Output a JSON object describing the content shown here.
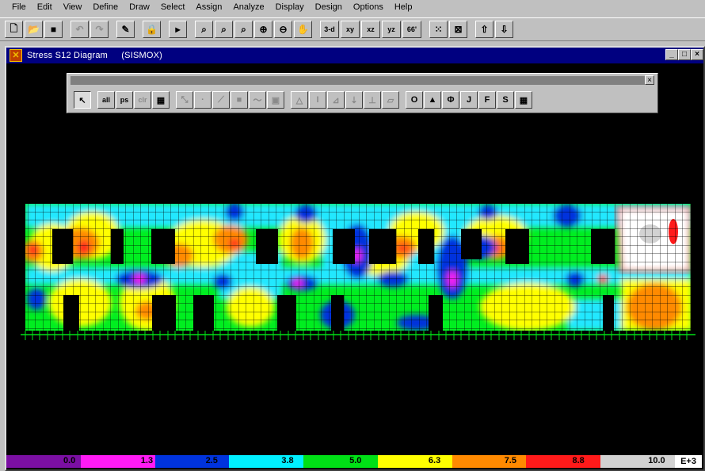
{
  "menu": [
    "File",
    "Edit",
    "View",
    "Define",
    "Draw",
    "Select",
    "Assign",
    "Analyze",
    "Display",
    "Design",
    "Options",
    "Help"
  ],
  "toolbar": {
    "view_3d": "3-d",
    "view_xy": "xy",
    "view_xz": "xz",
    "view_yz": "yz",
    "view_persp": "66'"
  },
  "window": {
    "title": "Stress S12 Diagram",
    "subtitle": "(SISMOX)",
    "minimize": "_",
    "restore": "□",
    "close": "×"
  },
  "palette": {
    "close": "×",
    "all": "all",
    "ps": "ps",
    "clr": "clr",
    "letters": [
      "O",
      "▲",
      "Φ",
      "J",
      "F",
      "S",
      "▦"
    ]
  },
  "legend": {
    "colors": [
      "#7b0fa3",
      "#ff1bf5",
      "#0033dd",
      "#00f0ff",
      "#00e016",
      "#ffff00",
      "#ff8a00",
      "#ff1a1a",
      "#d2d2d2"
    ],
    "labels": [
      "0.0",
      "1.3",
      "2.5",
      "3.8",
      "5.0",
      "6.3",
      "7.5",
      "8.8",
      "10.0"
    ],
    "exponent": "E+3"
  }
}
